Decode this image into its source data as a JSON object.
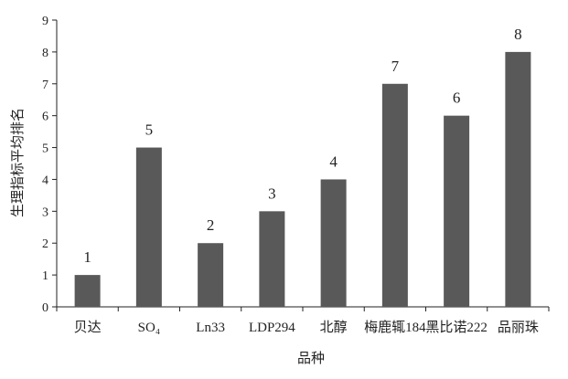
{
  "chart_data": {
    "type": "bar",
    "title": "",
    "xlabel": "品种",
    "ylabel": "生理指标平均排名",
    "categories": [
      "贝达",
      "SO₄",
      "Ln33",
      "LDP294",
      "北醇",
      "梅鹿辄184",
      "黑比诺222",
      "品丽珠"
    ],
    "values": [
      1,
      5,
      2,
      3,
      4,
      7,
      6,
      8
    ],
    "data_labels": [
      "1",
      "5",
      "2",
      "3",
      "4",
      "7",
      "6",
      "8"
    ],
    "ylim": [
      0,
      9
    ],
    "yticks": [
      "0",
      "1",
      "2",
      "3",
      "4",
      "5",
      "6",
      "7",
      "8",
      "9"
    ],
    "grid": false,
    "bar_color": "#595959"
  }
}
